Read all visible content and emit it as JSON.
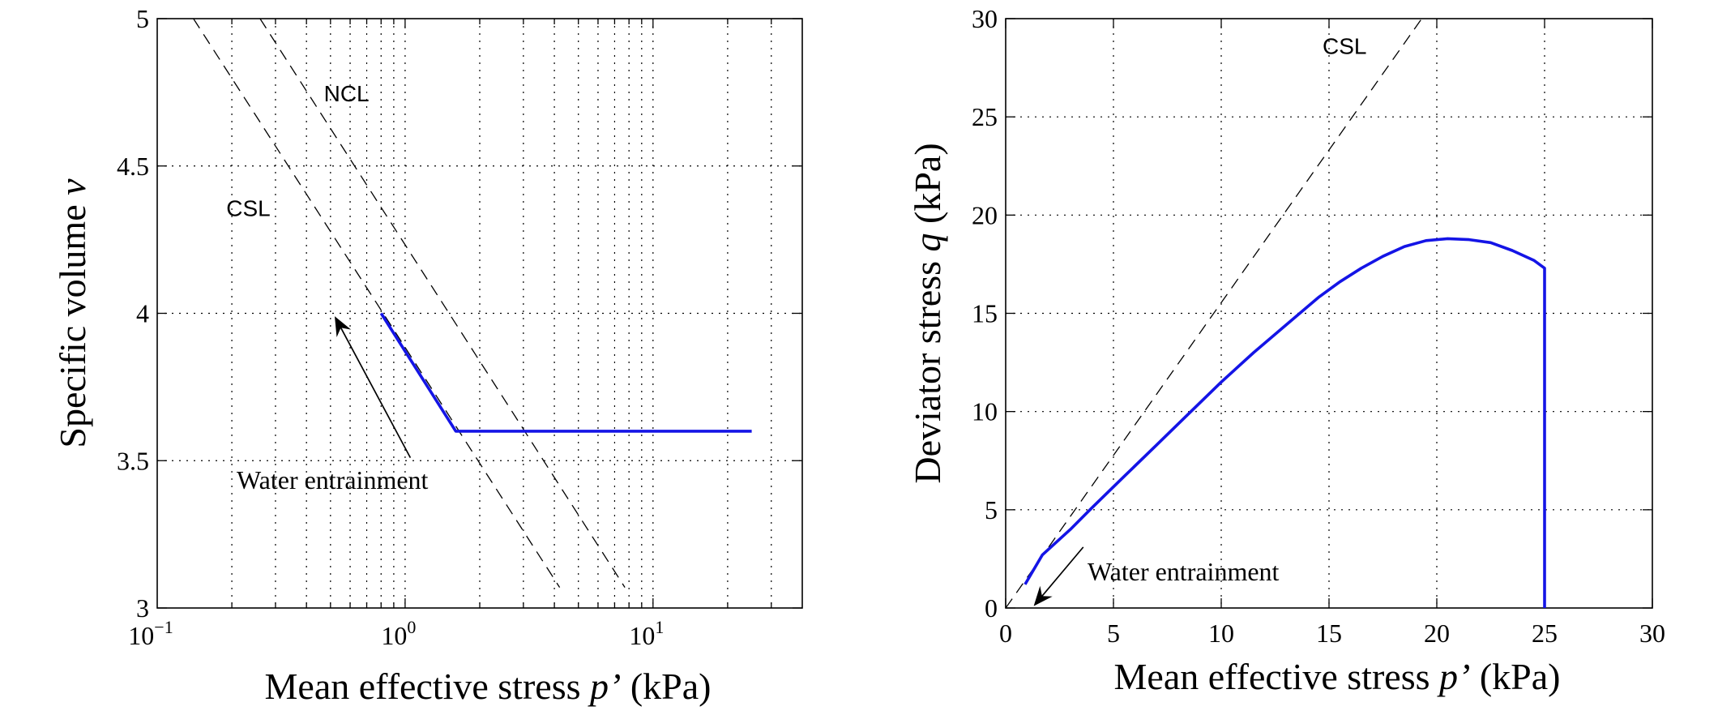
{
  "chart_data": [
    {
      "type": "line",
      "xscale": "log",
      "xlim": [
        0.1,
        40
      ],
      "ylim": [
        3,
        5
      ],
      "grid": true,
      "xlabel": "Mean effective stress",
      "xlabel_symbol": "p’",
      "xlabel_unit": "(kPa)",
      "ylabel": "Specific volume",
      "ylabel_symbol": "v",
      "x_ticks": [
        {
          "value": 0.1,
          "base": "10",
          "exp": "−1"
        },
        {
          "value": 1,
          "base": "10",
          "exp": "0"
        },
        {
          "value": 10,
          "base": "10",
          "exp": "1"
        }
      ],
      "y_ticks": [
        "3",
        "3.5",
        "4",
        "4.5",
        "5"
      ],
      "reference_lines": [
        {
          "label": "CSL",
          "points": [
            [
              0.14,
              5.0
            ],
            [
              4.2,
              3.07
            ]
          ]
        },
        {
          "label": "NCL",
          "points": [
            [
              0.26,
              5.0
            ],
            [
              7.7,
              3.07
            ]
          ]
        }
      ],
      "series": [
        {
          "color": "#1414e6",
          "points": [
            [
              0.8,
              4.0
            ],
            [
              1.6,
              3.6
            ],
            [
              25,
              3.6
            ]
          ]
        }
      ],
      "annotation": {
        "text": "Water entrainment",
        "arrow_from": [
          1.05,
          3.51
        ],
        "arrow_to": [
          0.52,
          3.99
        ]
      }
    },
    {
      "type": "line",
      "xlim": [
        0,
        30
      ],
      "ylim": [
        0,
        30
      ],
      "grid": true,
      "xlabel": "Mean effective stress",
      "xlabel_symbol": "p’",
      "xlabel_unit": "(kPa)",
      "ylabel": "Deviator stress",
      "ylabel_symbol": "q",
      "ylabel_unit": "(kPa)",
      "x_ticks": [
        "0",
        "5",
        "10",
        "15",
        "20",
        "25",
        "30"
      ],
      "y_ticks": [
        "0",
        "5",
        "10",
        "15",
        "20",
        "25",
        "30"
      ],
      "reference_lines": [
        {
          "label": "CSL",
          "points": [
            [
              0,
              0
            ],
            [
              19.3,
              30
            ]
          ]
        }
      ],
      "series": [
        {
          "color": "#1414e6",
          "points": [
            [
              25,
              0
            ],
            [
              25,
              17.3
            ],
            [
              24.5,
              17.7
            ],
            [
              23.5,
              18.2
            ],
            [
              22.5,
              18.6
            ],
            [
              21.5,
              18.75
            ],
            [
              20.5,
              18.8
            ],
            [
              19.5,
              18.7
            ],
            [
              18.5,
              18.4
            ],
            [
              17.5,
              17.9
            ],
            [
              16.5,
              17.3
            ],
            [
              15.5,
              16.6
            ],
            [
              14.5,
              15.8
            ],
            [
              13.0,
              14.4
            ],
            [
              11.5,
              13.0
            ],
            [
              10.0,
              11.5
            ],
            [
              8.5,
              9.9
            ],
            [
              7.0,
              8.3
            ],
            [
              5.5,
              6.7
            ],
            [
              4.0,
              5.1
            ],
            [
              3.0,
              4.0
            ],
            [
              1.7,
              2.7
            ],
            [
              0.9,
              1.2
            ]
          ]
        }
      ],
      "annotation": {
        "text": "Water entrainment",
        "arrow_from": [
          3.6,
          3.1
        ],
        "arrow_to": [
          1.3,
          0.1
        ]
      }
    }
  ]
}
